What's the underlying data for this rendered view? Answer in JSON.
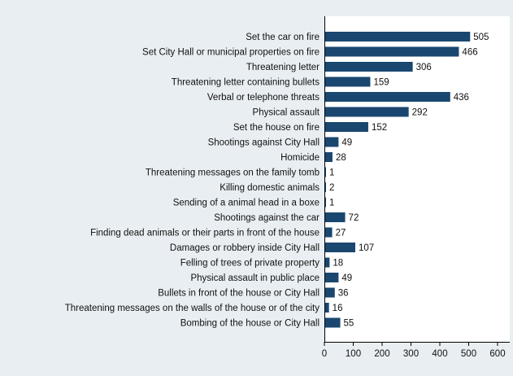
{
  "chart_data": {
    "type": "bar",
    "orientation": "horizontal",
    "categories": [
      "Set the car on fire",
      "Set City Hall or municipal properties on fire",
      "Threatening letter",
      "Threatening letter containing bullets",
      "Verbal or telephone threats",
      "Physical assault",
      "Set the house on fire",
      "Shootings against City Hall",
      "Homicide",
      "Threatening messages on the family tomb",
      "Killing domestic animals",
      "Sending of a animal head in a boxe",
      "Shootings against the car",
      "Finding dead animals or their parts in front of the house",
      "Damages or robbery inside City Hall",
      "Felling of trees of private property",
      "Physical assault in public place",
      "Bullets in front of the house or City Hall",
      "Threatening messages on the walls of the house or of the city",
      "Bombing of the house or City Hall"
    ],
    "values": [
      505,
      466,
      306,
      159,
      436,
      292,
      152,
      49,
      28,
      1,
      2,
      1,
      72,
      27,
      107,
      18,
      49,
      36,
      16,
      55
    ],
    "value_labels": [
      "505",
      "466",
      "306",
      "159",
      "436",
      "292",
      "152",
      "49",
      "28",
      "1",
      "2",
      "1",
      "72",
      "27",
      "107",
      "18",
      "49",
      "36",
      "16",
      "55"
    ],
    "xticks": [
      "0",
      "100",
      "200",
      "300",
      "400",
      "500",
      "600"
    ],
    "xlim": [
      0,
      600
    ],
    "grid": false,
    "colors": {
      "bar": "#1a476f",
      "background": "#e9eef2",
      "plot_background": "#ffffff"
    }
  }
}
